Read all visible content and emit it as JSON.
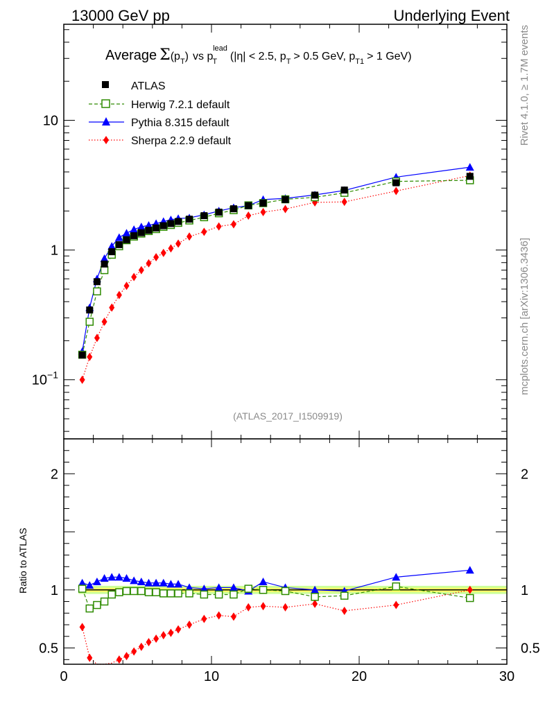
{
  "header": {
    "left": "13000 GeV pp",
    "right": "Underlying Event"
  },
  "side_labels": {
    "rivet": "Rivet 4.1.0, ≥ 1.7M events",
    "mcplots": "mcplots.cern.ch [arXiv:1306.3436]"
  },
  "plot_title": {
    "average": "Average",
    "sigma": "Σ",
    "pt_open": "(p",
    "T": "T",
    "pt_close": ")",
    "vs": "vs p",
    "lead": "lead",
    "eta": "(|η| < 2.5, p",
    "pt_cut": "> 0.5 GeV, p",
    "T1": "T1",
    "pt1_cut": "> 1 GeV)"
  },
  "analysis_id": "(ATLAS_2017_I1509919)",
  "colors": {
    "atlas": "#000000",
    "herwig": "#2e8b00",
    "pythia": "#0000ff",
    "sherpa": "#ff0000",
    "band_inner": "#ffff66",
    "band_outer": "#ccff99"
  },
  "chart_data": [
    {
      "type": "scatter",
      "panel": "main",
      "title": "Average Σ(pT) vs pT lead (|η| < 2.5, pT > 0.5 GeV, pT1 > 1 GeV)",
      "xlabel": "",
      "ylabel": "",
      "yscale": "log",
      "xlim": [
        0,
        30
      ],
      "ylim": [
        0.035,
        55
      ],
      "yticks": [
        {
          "value": 0.1,
          "base": "10",
          "exp": "−1"
        },
        {
          "value": 1,
          "label": "1"
        },
        {
          "value": 10,
          "label": "10"
        }
      ],
      "legend_position": "top-left",
      "x": [
        1.25,
        1.75,
        2.25,
        2.75,
        3.25,
        3.75,
        4.25,
        4.75,
        5.25,
        5.75,
        6.25,
        6.75,
        7.25,
        7.75,
        8.5,
        9.5,
        10.5,
        11.5,
        12.5,
        13.5,
        15,
        17,
        19,
        22.5,
        27.5
      ],
      "series": [
        {
          "name": "ATLAS",
          "style": "atlas",
          "values": [
            0.155,
            0.345,
            0.57,
            0.78,
            0.97,
            1.1,
            1.2,
            1.29,
            1.36,
            1.42,
            1.48,
            1.54,
            1.6,
            1.66,
            1.73,
            1.84,
            1.96,
            2.08,
            2.2,
            2.3,
            2.45,
            2.65,
            2.9,
            3.3,
            3.7
          ]
        },
        {
          "name": "Herwig 7.2.1 default",
          "style": "herwig",
          "values": [
            0.156,
            0.28,
            0.48,
            0.7,
            0.92,
            1.07,
            1.19,
            1.27,
            1.34,
            1.4,
            1.45,
            1.51,
            1.56,
            1.62,
            1.69,
            1.79,
            1.92,
            2.03,
            2.21,
            2.3,
            2.46,
            2.55,
            2.76,
            3.38,
            3.45
          ]
        },
        {
          "name": "Pythia 8.315 default",
          "style": "pythia",
          "values": [
            0.165,
            0.36,
            0.6,
            0.86,
            1.07,
            1.25,
            1.35,
            1.44,
            1.51,
            1.55,
            1.6,
            1.66,
            1.71,
            1.75,
            1.77,
            1.87,
            2.0,
            2.12,
            2.2,
            2.45,
            2.5,
            2.66,
            2.88,
            3.65,
            4.35
          ]
        },
        {
          "name": "Sherpa 2.2.9 default",
          "style": "sherpa",
          "values": [
            0.1,
            0.15,
            0.21,
            0.28,
            0.36,
            0.45,
            0.53,
            0.62,
            0.7,
            0.79,
            0.88,
            0.95,
            1.03,
            1.12,
            1.27,
            1.38,
            1.52,
            1.58,
            1.84,
            1.96,
            2.07,
            2.33,
            2.35,
            2.85,
            3.75
          ]
        }
      ]
    },
    {
      "type": "scatter",
      "panel": "ratio",
      "title": "",
      "xlabel": "",
      "ylabel": "Ratio to ATLAS",
      "xlim": [
        0,
        30
      ],
      "ylim": [
        0.36,
        2.3
      ],
      "yticks": [
        {
          "value": 0.5,
          "label": "0.5"
        },
        {
          "value": 1,
          "label": "1"
        },
        {
          "value": 2,
          "label": "2"
        }
      ],
      "xticks": [
        {
          "value": 0,
          "label": "0"
        },
        {
          "value": 10,
          "label": "10"
        },
        {
          "value": 20,
          "label": "20"
        },
        {
          "value": 30,
          "label": "30"
        }
      ],
      "x": [
        1.25,
        1.75,
        2.25,
        2.75,
        3.25,
        3.75,
        4.25,
        4.75,
        5.25,
        5.75,
        6.25,
        6.75,
        7.25,
        7.75,
        8.5,
        9.5,
        10.5,
        11.5,
        12.5,
        13.5,
        15,
        17,
        19,
        22.5,
        27.5
      ],
      "series": [
        {
          "name": "Herwig 7.2.1 default",
          "style": "herwig",
          "values": [
            1.01,
            0.84,
            0.87,
            0.9,
            0.96,
            0.98,
            0.99,
            0.99,
            0.99,
            0.98,
            0.98,
            0.97,
            0.97,
            0.97,
            0.97,
            0.96,
            0.96,
            0.96,
            1.01,
            1.0,
            0.99,
            0.94,
            0.95,
            1.03,
            0.93
          ]
        },
        {
          "name": "Pythia 8.315 default",
          "style": "pythia",
          "values": [
            1.06,
            1.04,
            1.07,
            1.1,
            1.11,
            1.11,
            1.1,
            1.08,
            1.07,
            1.06,
            1.06,
            1.06,
            1.05,
            1.05,
            1.02,
            1.01,
            1.02,
            1.02,
            0.99,
            1.07,
            1.02,
            1.0,
            0.99,
            1.11,
            1.17
          ]
        },
        {
          "name": "Sherpa 2.2.9 default",
          "style": "sherpa",
          "values": [
            0.68,
            0.415,
            0.36,
            0.36,
            0.37,
            0.4,
            0.43,
            0.47,
            0.51,
            0.55,
            0.58,
            0.61,
            0.63,
            0.66,
            0.7,
            0.75,
            0.78,
            0.77,
            0.85,
            0.86,
            0.85,
            0.88,
            0.82,
            0.87,
            1.0
          ]
        }
      ]
    }
  ]
}
